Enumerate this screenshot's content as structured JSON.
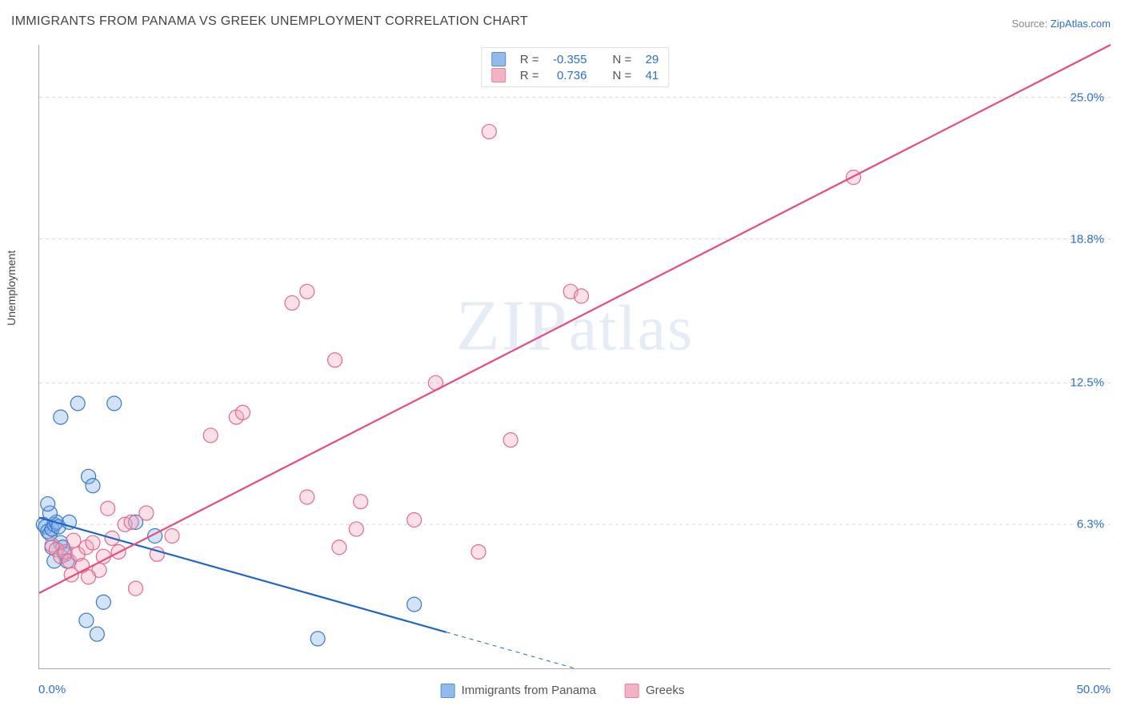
{
  "title": "IMMIGRANTS FROM PANAMA VS GREEK UNEMPLOYMENT CORRELATION CHART",
  "source_label": "Source: ",
  "source_value": "ZipAtlas.com",
  "watermark": {
    "part1": "ZIP",
    "part2": "atlas"
  },
  "chart": {
    "type": "scatter",
    "y_axis_label": "Unemployment",
    "xlim": [
      0,
      50
    ],
    "ylim": [
      0,
      27.3
    ],
    "x_ticks": [
      {
        "v": 0,
        "label": "0.0%"
      },
      {
        "v": 50,
        "label": "50.0%"
      }
    ],
    "y_ticks": [
      {
        "v": 6.3,
        "label": "6.3%"
      },
      {
        "v": 12.5,
        "label": "12.5%"
      },
      {
        "v": 18.8,
        "label": "18.8%"
      },
      {
        "v": 25.0,
        "label": "25.0%"
      }
    ],
    "grid_color": "#d8d8d8",
    "axis_color": "#aaaaaa",
    "background_color": "#ffffff",
    "tick_label_color": "#2b6fd4",
    "label_fontsize": 14,
    "tick_fontsize": 15,
    "title_fontsize": 16,
    "marker_radius": 9,
    "marker_stroke_width": 1.2,
    "marker_fill_opacity": 0.35,
    "series": [
      {
        "name": "Immigrants from Panama",
        "color": "#7fb0e8",
        "stroke": "#3a78c9",
        "line_color": "#1f66c9",
        "line_width": 2.2,
        "dash_after_x": 19,
        "R_label": "R = ",
        "N_label": "N = ",
        "R": "-0.355",
        "N": "29",
        "trend": {
          "x1": 0,
          "y1": 6.6,
          "x2": 25,
          "y2": 0
        },
        "points": [
          [
            0.2,
            6.3
          ],
          [
            0.3,
            6.2
          ],
          [
            0.4,
            6.0
          ],
          [
            0.5,
            5.9
          ],
          [
            0.6,
            6.1
          ],
          [
            0.7,
            6.3
          ],
          [
            0.8,
            6.4
          ],
          [
            0.9,
            6.2
          ],
          [
            0.5,
            6.8
          ],
          [
            0.4,
            7.2
          ],
          [
            1.0,
            5.5
          ],
          [
            1.1,
            5.3
          ],
          [
            1.2,
            5.0
          ],
          [
            1.3,
            4.7
          ],
          [
            1.0,
            11.0
          ],
          [
            1.8,
            11.6
          ],
          [
            3.5,
            11.6
          ],
          [
            2.3,
            8.4
          ],
          [
            2.5,
            8.0
          ],
          [
            2.2,
            2.1
          ],
          [
            2.7,
            1.5
          ],
          [
            3.0,
            2.9
          ],
          [
            4.5,
            6.4
          ],
          [
            5.4,
            5.8
          ],
          [
            13.0,
            1.3
          ],
          [
            17.5,
            2.8
          ],
          [
            0.6,
            5.3
          ],
          [
            0.7,
            4.7
          ],
          [
            1.4,
            6.4
          ]
        ]
      },
      {
        "name": "Greeks",
        "color": "#f3a6ba",
        "stroke": "#e46a8e",
        "line_color": "#ea4b7f",
        "line_width": 2.2,
        "R_label": "R = ",
        "N_label": "N = ",
        "R": " 0.736",
        "N": "41",
        "trend": {
          "x1": 0,
          "y1": 3.3,
          "x2": 50,
          "y2": 27.3
        },
        "points": [
          [
            0.6,
            5.4
          ],
          [
            0.8,
            5.2
          ],
          [
            1.0,
            4.9
          ],
          [
            1.2,
            5.1
          ],
          [
            1.4,
            4.7
          ],
          [
            1.6,
            5.6
          ],
          [
            1.8,
            5.0
          ],
          [
            2.0,
            4.5
          ],
          [
            2.2,
            5.3
          ],
          [
            2.5,
            5.5
          ],
          [
            2.8,
            4.3
          ],
          [
            3.0,
            4.9
          ],
          [
            3.4,
            5.7
          ],
          [
            3.7,
            5.1
          ],
          [
            4.0,
            6.3
          ],
          [
            4.5,
            3.5
          ],
          [
            5.0,
            6.8
          ],
          [
            8.0,
            10.2
          ],
          [
            9.2,
            11.0
          ],
          [
            14.8,
            6.1
          ],
          [
            11.8,
            16.0
          ],
          [
            12.5,
            16.5
          ],
          [
            13.8,
            13.5
          ],
          [
            12.5,
            7.5
          ],
          [
            14.0,
            5.3
          ],
          [
            15.0,
            7.3
          ],
          [
            17.5,
            6.5
          ],
          [
            18.5,
            12.5
          ],
          [
            20.5,
            5.1
          ],
          [
            22.0,
            10.0
          ],
          [
            24.8,
            16.5
          ],
          [
            25.3,
            16.3
          ],
          [
            21.0,
            23.5
          ],
          [
            38.0,
            21.5
          ],
          [
            4.3,
            6.4
          ],
          [
            5.5,
            5.0
          ],
          [
            6.2,
            5.8
          ],
          [
            3.2,
            7.0
          ],
          [
            9.5,
            11.2
          ],
          [
            1.5,
            4.1
          ],
          [
            2.3,
            4.0
          ]
        ]
      }
    ],
    "bottom_legend_labels": [
      "Immigrants from Panama",
      "Greeks"
    ]
  }
}
